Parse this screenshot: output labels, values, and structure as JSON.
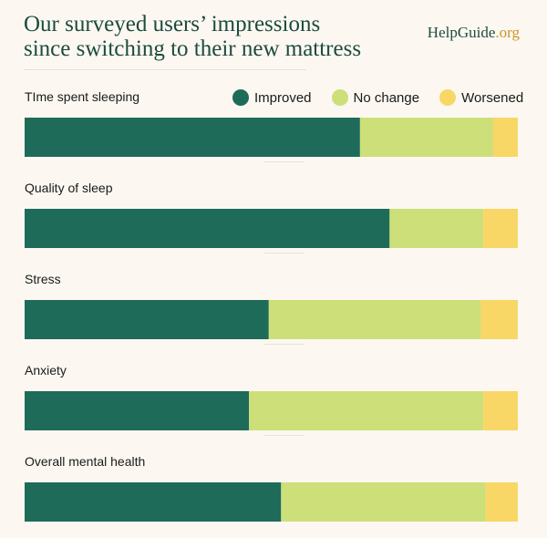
{
  "header": {
    "title_line1": "Our surveyed users’ impressions",
    "title_line2": "since switching to their new mattress",
    "brand_main": "HelpGuide",
    "brand_tld": ".org"
  },
  "chart_data": {
    "type": "bar",
    "orientation": "horizontal",
    "stacked": true,
    "normalized_to": 100,
    "categories": [
      "TIme spent sleeping",
      "Quality of sleep",
      "Stress",
      "Anxiety",
      "Overall mental health"
    ],
    "series": [
      {
        "name": "Improved",
        "color": "#1e6b5a",
        "values": [
          68,
          74,
          49.5,
          45.5,
          52
        ]
      },
      {
        "name": "No change",
        "color": "#ccdf79",
        "values": [
          27,
          19,
          43,
          47.5,
          41.5
        ]
      },
      {
        "name": "Worsened",
        "color": "#f9d766",
        "values": [
          5,
          7,
          7.5,
          7,
          6.5
        ]
      }
    ],
    "title": "",
    "xlabel": "",
    "ylabel": "",
    "legend_position": "top-right",
    "grid": false
  }
}
